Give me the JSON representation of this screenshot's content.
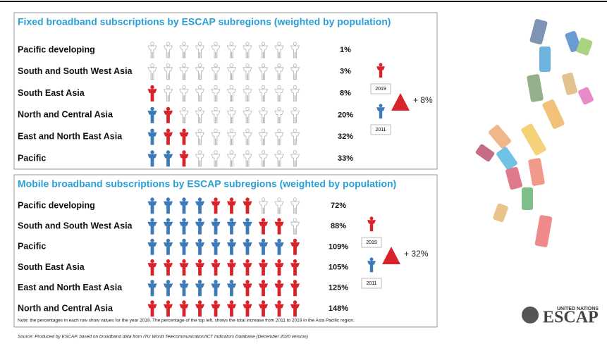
{
  "fixed": {
    "title": "Fixed broadband subscriptions by ESCAP subregions (weighted by population)",
    "rows": [
      {
        "label": "Pacific developing",
        "value": "1%",
        "blue": 0,
        "red": 0
      },
      {
        "label": "South and South West Asia",
        "value": "3%",
        "blue": 0,
        "red": 0
      },
      {
        "label": "South East Asia",
        "value": "8%",
        "blue": 0,
        "red": 1
      },
      {
        "label": "North and Central Asia",
        "value": "20%",
        "blue": 1,
        "red": 1
      },
      {
        "label": "East and North East Asia",
        "value": "32%",
        "blue": 1,
        "red": 2
      },
      {
        "label": "Pacific",
        "value": "33%",
        "blue": 2,
        "red": 1
      }
    ],
    "legend": {
      "red": "2019",
      "blue": "2011",
      "increase": "+ 8%"
    }
  },
  "mobile": {
    "title": "Mobile broadband subscriptions by ESCAP subregions (weighted by population)",
    "rows": [
      {
        "label": "Pacific developing",
        "value": "72%",
        "blue": 4,
        "red": 3
      },
      {
        "label": "South and South West Asia",
        "value": "88%",
        "blue": 7,
        "red": 2
      },
      {
        "label": "Pacific",
        "value": "109%",
        "blue": 9,
        "red": 1
      },
      {
        "label": "South East Asia",
        "value": "105%",
        "blue": 0,
        "red": 10
      },
      {
        "label": "East and North East Asia",
        "value": "125%",
        "blue": 6,
        "red": 4
      },
      {
        "label": "North and Central Asia",
        "value": "148%",
        "blue": 0,
        "red": 10
      }
    ],
    "legend": {
      "red": "2019",
      "blue": "2011",
      "increase": "+ 32%"
    },
    "note": "Note: the percentages in each row show values for the year 2019. The percentage of the top left, shows the total increase from 2011 to 2019 in the Asia Pacific region."
  },
  "source": "Source: Produced by ESCAP, based on broadband data from ITU World Telecommunication/ICT Indicators Database (December 2020 version)",
  "logo": {
    "org": "UNITED NATIONS",
    "name": "ESCAP"
  }
}
